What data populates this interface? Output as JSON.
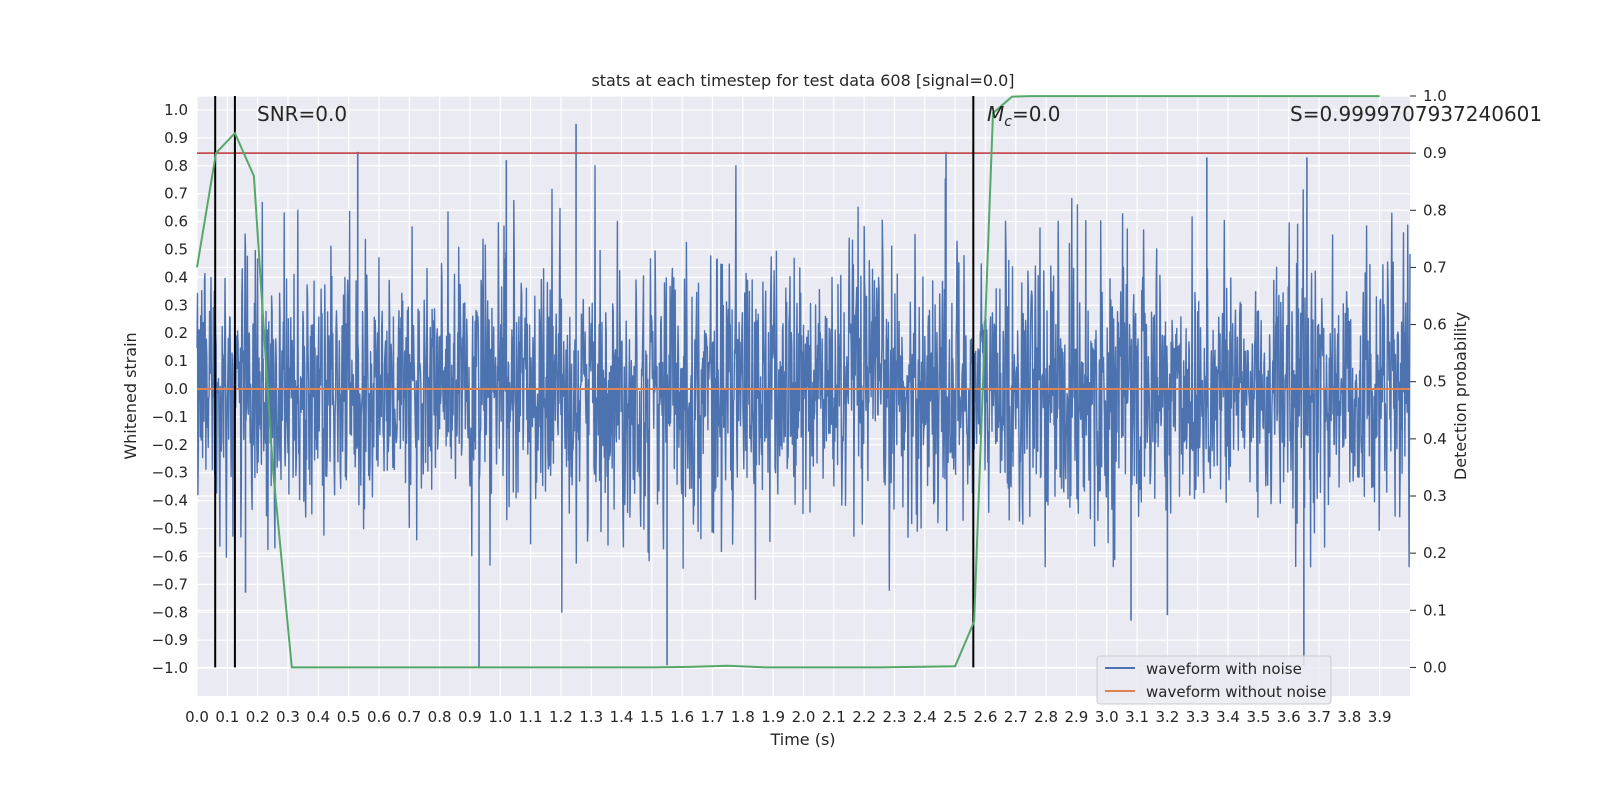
{
  "chart_data": {
    "type": "line",
    "title": "stats at each timestep for test data 608 [signal=0.0]",
    "xlabel": "Time (s)",
    "ylabel": "Whitened strain",
    "y2label": "Detection probability",
    "xlim": [
      0.0,
      4.0
    ],
    "ylim": [
      -1.1,
      1.05
    ],
    "y2lim": [
      -0.05,
      1.0
    ],
    "xticks": [
      "0.0",
      "0.1",
      "0.2",
      "0.3",
      "0.4",
      "0.5",
      "0.6",
      "0.7",
      "0.8",
      "0.9",
      "1.0",
      "1.1",
      "1.2",
      "1.3",
      "1.4",
      "1.5",
      "1.6",
      "1.7",
      "1.8",
      "1.9",
      "2.0",
      "2.1",
      "2.2",
      "2.3",
      "2.4",
      "2.5",
      "2.6",
      "2.7",
      "2.8",
      "2.9",
      "3.0",
      "3.1",
      "3.2",
      "3.3",
      "3.4",
      "3.5",
      "3.6",
      "3.7",
      "3.8",
      "3.9"
    ],
    "yticks": [
      "1.0",
      "0.9",
      "0.8",
      "0.7",
      "0.6",
      "0.5",
      "0.4",
      "0.3",
      "0.2",
      "0.1",
      "0.0",
      "-0.1",
      "-0.2",
      "-0.3",
      "-0.4",
      "-0.5",
      "-0.6",
      "-0.7",
      "-0.8",
      "-0.9",
      "-1.0"
    ],
    "y2ticks": [
      "1.0",
      "0.9",
      "0.8",
      "0.7",
      "0.6",
      "0.5",
      "0.4",
      "0.3",
      "0.2",
      "0.1",
      "0.0"
    ],
    "grid": true,
    "legend_position": "lower-right",
    "annotations": {
      "snr": "SNR=0.0",
      "mc_symbol": "M",
      "mc_sub": "c",
      "mc_value": "=0.0",
      "s_value": "S=0.9999707937240601"
    },
    "series": [
      {
        "name": "waveform with noise",
        "color": "#4c72b0",
        "axis": "left",
        "style": "dense noise",
        "notable_points": [
          [
            0.93,
            -1.0
          ],
          [
            1.55,
            -0.99
          ],
          [
            3.65,
            -0.99
          ],
          [
            1.25,
            0.95
          ],
          [
            0.53,
            0.85
          ],
          [
            2.47,
            0.85
          ],
          [
            3.66,
            0.83
          ],
          [
            3.33,
            0.83
          ],
          [
            1.02,
            0.82
          ],
          [
            3.08,
            -0.83
          ],
          [
            0.16,
            -0.73
          ],
          [
            3.2,
            -0.81
          ]
        ]
      },
      {
        "name": "waveform without noise",
        "color": "#dd8452",
        "axis": "left",
        "x": [
          0.0,
          4.0
        ],
        "y": [
          0.0,
          0.0
        ]
      },
      {
        "color": "#55a868",
        "axis": "right",
        "x": [
          0.0,
          0.0625,
          0.125,
          0.1875,
          0.25,
          0.3125,
          0.375,
          0.4375,
          0.5,
          0.75,
          1.0,
          1.25,
          1.5,
          1.625,
          1.75,
          1.875,
          2.0,
          2.25,
          2.5,
          2.5625,
          2.625,
          2.6875,
          2.75,
          3.0,
          3.5,
          3.9
        ],
        "y": [
          0.7,
          0.9,
          0.935,
          0.86,
          0.35,
          0.0,
          0.0,
          0.0,
          0.0,
          0.0,
          0.0,
          0.0,
          0.0,
          0.001,
          0.003,
          0.0,
          0.0,
          0.0,
          0.002,
          0.08,
          0.97,
          0.999,
          0.9999,
          0.9999,
          0.9999,
          0.9999
        ]
      }
    ],
    "reference_lines": {
      "threshold": {
        "axis": "right",
        "y": 0.9,
        "color": "#c44e52"
      },
      "vlines_x": [
        0.06,
        0.125,
        2.56
      ],
      "vline_color": "#000000"
    }
  }
}
